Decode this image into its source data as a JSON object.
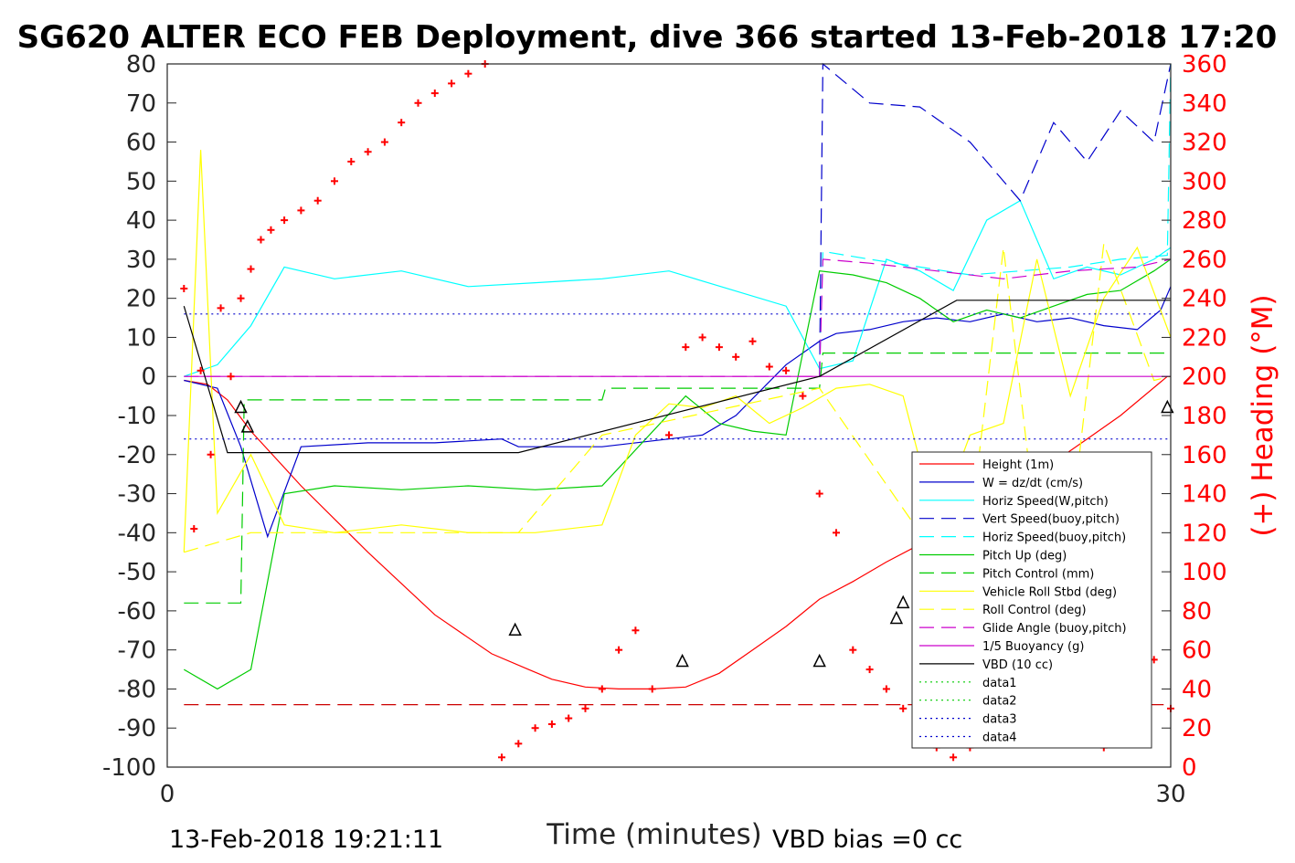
{
  "chart_data": {
    "type": "line",
    "title": "SG620 ALTER ECO FEB Deployment, dive 366 started 13-Feb-2018 17:20",
    "xlabel": "Time (minutes)",
    "ylabel_right": "(+) Heading (°M)",
    "xlim": [
      0,
      30
    ],
    "ylim": [
      -100,
      80
    ],
    "ylim_right": [
      0,
      360
    ],
    "x_ticks": [
      "0",
      "30"
    ],
    "y_ticks": [
      "80",
      "70",
      "60",
      "50",
      "40",
      "30",
      "20",
      "10",
      "0",
      "-10",
      "-20",
      "-30",
      "-40",
      "-50",
      "-60",
      "-70",
      "-80",
      "-90",
      "-100"
    ],
    "y_ticks_right": [
      "360",
      "340",
      "320",
      "300",
      "280",
      "260",
      "240",
      "220",
      "200",
      "180",
      "160",
      "140",
      "120",
      "100",
      "80",
      "60",
      "40",
      "20",
      "0"
    ],
    "grid": false,
    "legend_position": "lower-right",
    "footer_left": "13-Feb-2018 19:21:11",
    "footer_right": "VBD bias =0 cc",
    "series": [
      {
        "name": "Height (1m)",
        "color": "#ff0000",
        "style": "solid",
        "x": [
          0.5,
          1.2,
          1.8,
          2.5,
          4,
          6,
          8,
          9.7,
          10.8,
          11.5,
          12.5,
          13.5,
          14.5,
          15.5,
          16.5,
          17.5,
          18.5,
          19.5,
          20.5,
          21.5,
          22.5,
          23.5,
          24.5,
          25.5,
          26.5,
          27.5,
          28.5,
          29.9
        ],
        "y": [
          -1,
          -2,
          -6,
          -14,
          -28,
          -45,
          -61,
          -71,
          -75,
          -77.5,
          -79.5,
          -80,
          -80,
          -79.5,
          -76,
          -70,
          -64,
          -57,
          -52.5,
          -47.5,
          -43,
          -38.5,
          -33.5,
          -28,
          -22,
          -16,
          -10,
          0
        ]
      },
      {
        "name": "W = dz/dt (cm/s)",
        "color": "#0000cc",
        "style": "solid",
        "x": [
          0.5,
          1.5,
          2.2,
          3,
          4,
          6,
          8,
          10,
          10.5,
          13,
          15,
          16,
          17,
          18.5,
          19.5,
          20,
          21,
          22,
          23,
          24,
          25,
          26,
          27,
          28,
          29,
          29.7,
          30
        ],
        "y": [
          -1,
          -3,
          -18,
          -41,
          -18,
          -17,
          -17,
          -16,
          -18,
          -18,
          -16,
          -15,
          -10,
          3,
          9,
          11,
          12,
          14,
          15,
          14,
          16,
          14,
          15,
          13,
          12,
          17,
          23
        ]
      },
      {
        "name": "Horiz Speed(W,pitch)",
        "color": "#00ffff",
        "style": "solid",
        "x": [
          0.5,
          1.5,
          2.5,
          3.5,
          5,
          7,
          9,
          11,
          13,
          15,
          18.5,
          19.5,
          20.5,
          21.5,
          22.5,
          23.5,
          24.5,
          25.5,
          26.5,
          27.5,
          28.5,
          29.5,
          30
        ],
        "y": [
          0,
          3,
          13,
          28,
          25,
          27,
          23,
          24,
          25,
          27,
          18,
          2,
          4,
          30,
          27,
          22,
          40,
          45,
          25,
          28,
          26,
          30,
          33
        ]
      },
      {
        "name": "Vert Speed(buoy,pitch)",
        "color": "#0000cc",
        "style": "dashed",
        "x": [
          19.5,
          19.6,
          21,
          22.5,
          24,
          25.5,
          26.5,
          27.5,
          28.5,
          29.5,
          30
        ],
        "y": [
          0,
          80,
          70,
          69,
          60,
          45,
          65,
          55,
          68,
          60,
          80
        ]
      },
      {
        "name": "Horiz Speed(buoy,pitch)",
        "color": "#00ffff",
        "style": "dashed",
        "x": [
          19.5,
          19.6,
          21,
          22.5,
          24,
          25.5,
          27,
          28.5,
          29.9,
          30
        ],
        "y": [
          0,
          32,
          30,
          28,
          26,
          27,
          28,
          30,
          31,
          80
        ]
      },
      {
        "name": "Pitch Up (deg)",
        "color": "#00cc00",
        "style": "solid",
        "x": [
          0.5,
          1.5,
          2.5,
          3.5,
          5,
          7,
          9,
          11,
          13,
          15.5,
          16.5,
          17.5,
          18.5,
          19.5,
          20.5,
          21.5,
          22.5,
          23.5,
          24.5,
          25.5,
          26.5,
          27.5,
          28.5,
          29.5,
          30
        ],
        "y": [
          -75,
          -80,
          -75,
          -30,
          -28,
          -29,
          -28,
          -29,
          -28,
          -5,
          -12,
          -14,
          -15,
          27,
          26,
          24,
          20,
          14,
          17,
          15,
          18,
          21,
          22,
          27,
          30
        ]
      },
      {
        "name": "Pitch Control (mm)",
        "color": "#00cc00",
        "style": "dashed",
        "x": [
          0.5,
          2.2,
          2.3,
          13,
          13.1,
          19.5,
          19.6,
          30
        ],
        "y": [
          -58,
          -58,
          -6,
          -6,
          -3,
          -3,
          6,
          6
        ]
      },
      {
        "name": "Vehicle Roll Stbd (deg)",
        "color": "#ffff00",
        "style": "solid",
        "x": [
          0.5,
          1,
          1.5,
          2.5,
          3.5,
          5,
          7,
          9,
          11,
          13,
          14,
          15,
          16,
          17,
          18,
          19,
          20,
          21,
          22,
          23,
          24,
          25,
          26,
          27,
          28,
          29,
          30
        ],
        "y": [
          -45,
          58,
          -35,
          -20,
          -38,
          -40,
          -38,
          -40,
          -40,
          -38,
          -15,
          -7,
          -8,
          -5,
          -12,
          -8,
          -3,
          -2,
          -5,
          -38,
          -15,
          -12,
          30,
          -5,
          20,
          33,
          10
        ]
      },
      {
        "name": "Roll Control (deg)",
        "color": "#ffff00",
        "style": "dashed",
        "x": [
          0.5,
          2.5,
          10.5,
          13,
          19.5,
          22.5,
          23,
          24,
          25,
          26,
          27,
          28,
          29.5,
          30
        ],
        "y": [
          -45,
          -40,
          -40,
          -15,
          -3,
          -40,
          -40,
          -40,
          33,
          -40,
          -40,
          34,
          -1,
          0
        ]
      },
      {
        "name": "Glide Angle (buoy,pitch)",
        "color": "#cc00cc",
        "style": "dashed",
        "x": [
          0.5,
          19.5,
          19.6,
          21,
          23,
          25,
          27,
          29,
          30
        ],
        "y": [
          0,
          0,
          30,
          29,
          27,
          25,
          27,
          28,
          30
        ]
      },
      {
        "name": "1/5 Buoyancy (g)",
        "color": "#cc00cc",
        "style": "solid",
        "x": [
          0.5,
          19.5,
          30
        ],
        "y": [
          0,
          0,
          0
        ]
      },
      {
        "name": "VBD (10 cc)",
        "color": "#000000",
        "style": "solid",
        "x": [
          0.5,
          1.8,
          10.5,
          19.5,
          23.6,
          30
        ],
        "y": [
          18,
          -19.5,
          -19.5,
          0,
          19.5,
          19.5
        ]
      },
      {
        "name": "data1",
        "color": "#00cc00",
        "style": "dotted",
        "x": [],
        "y": []
      },
      {
        "name": "data2",
        "color": "#00cc00",
        "style": "dotted",
        "x": [],
        "y": []
      },
      {
        "name": "data3",
        "color": "#0000cc",
        "style": "dotted",
        "x": [
          0.5,
          30
        ],
        "y": [
          -16,
          -16
        ]
      },
      {
        "name": "data4",
        "color": "#0000cc",
        "style": "dotted",
        "x": [
          0.5,
          30
        ],
        "y": [
          16,
          16
        ]
      }
    ],
    "extra_lines": [
      {
        "color": "#cc0000",
        "style": "dashed",
        "x": [
          0.5,
          30
        ],
        "y": [
          -84,
          -84
        ]
      }
    ],
    "heading_points": {
      "color": "#ff0000",
      "axis": "right",
      "x": [
        0.5,
        0.8,
        1,
        1.3,
        1.6,
        1.9,
        2.2,
        2.5,
        2.8,
        3.1,
        3.5,
        4,
        4.5,
        5,
        5.5,
        6,
        6.5,
        7,
        7.5,
        8,
        8.5,
        9,
        9.5,
        10,
        10.5,
        11,
        11.5,
        12,
        12.5,
        13,
        13.5,
        14,
        14.5,
        15,
        15.5,
        16,
        16.5,
        17,
        17.5,
        18,
        18.5,
        19,
        19.5,
        20,
        20.5,
        21,
        21.5,
        22,
        22.5,
        23,
        23.5,
        24,
        24.5,
        25,
        25.5,
        26,
        26.5,
        27,
        27.5,
        28,
        28.5,
        29,
        29.5,
        30
      ],
      "y": [
        245,
        122,
        203,
        160,
        235,
        200,
        240,
        255,
        270,
        275,
        280,
        285,
        290,
        300,
        310,
        315,
        320,
        330,
        340,
        345,
        350,
        355,
        360,
        5,
        12,
        20,
        22,
        25,
        30,
        40,
        60,
        70,
        40,
        170,
        215,
        220,
        215,
        210,
        218,
        205,
        203,
        190,
        140,
        120,
        60,
        50,
        40,
        30,
        20,
        10,
        5,
        10,
        40,
        50,
        45,
        55,
        50,
        30,
        20,
        10,
        40,
        50,
        55,
        30
      ]
    },
    "triangle_markers": {
      "color": "#000000",
      "x": [
        2.2,
        2.4,
        10.4,
        15.4,
        19.5,
        21.8,
        22,
        23.2,
        24.5,
        26,
        27.3,
        28.5,
        29.9
      ],
      "y": [
        -8,
        -13,
        -65,
        -73,
        -73,
        -62,
        -58,
        -48,
        -42,
        -35,
        -29,
        -23,
        -8
      ]
    }
  }
}
